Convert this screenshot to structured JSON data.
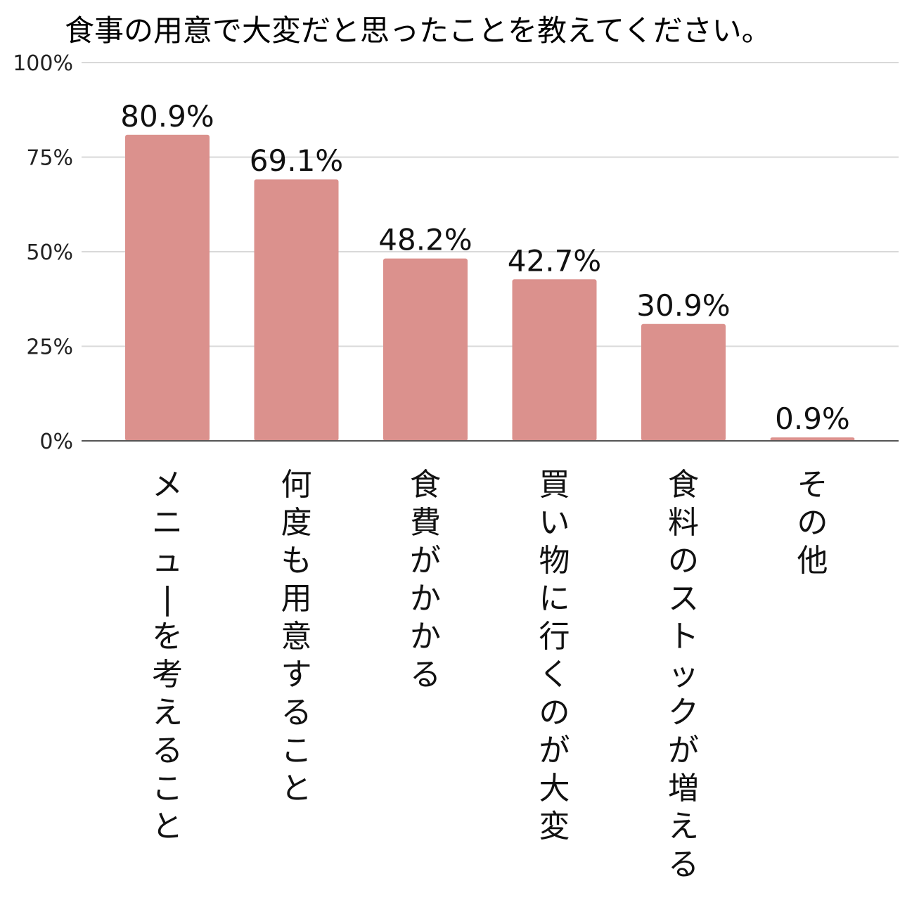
{
  "chart_data": {
    "type": "bar",
    "title": "食事の用意で大変だと思ったことを教えてください。",
    "categories": [
      "メニューを考えること",
      "何度も用意すること",
      "食費がかかる",
      "買い物に行くのが大変",
      "食料のストックが増える",
      "その他"
    ],
    "values": [
      80.9,
      69.1,
      48.2,
      42.7,
      30.9,
      0.9
    ],
    "value_labels": [
      "80.9%",
      "69.1%",
      "48.2%",
      "42.7%",
      "30.9%",
      "0.9%"
    ],
    "y_ticks": [
      "0%",
      "25%",
      "50%",
      "75%",
      "100%"
    ],
    "ylim": [
      0,
      100
    ],
    "xlabel": "",
    "ylabel": "",
    "grid": true,
    "bar_color": "#db918d",
    "grid_color": "#d9d9d9",
    "axis_color": "#555555"
  }
}
